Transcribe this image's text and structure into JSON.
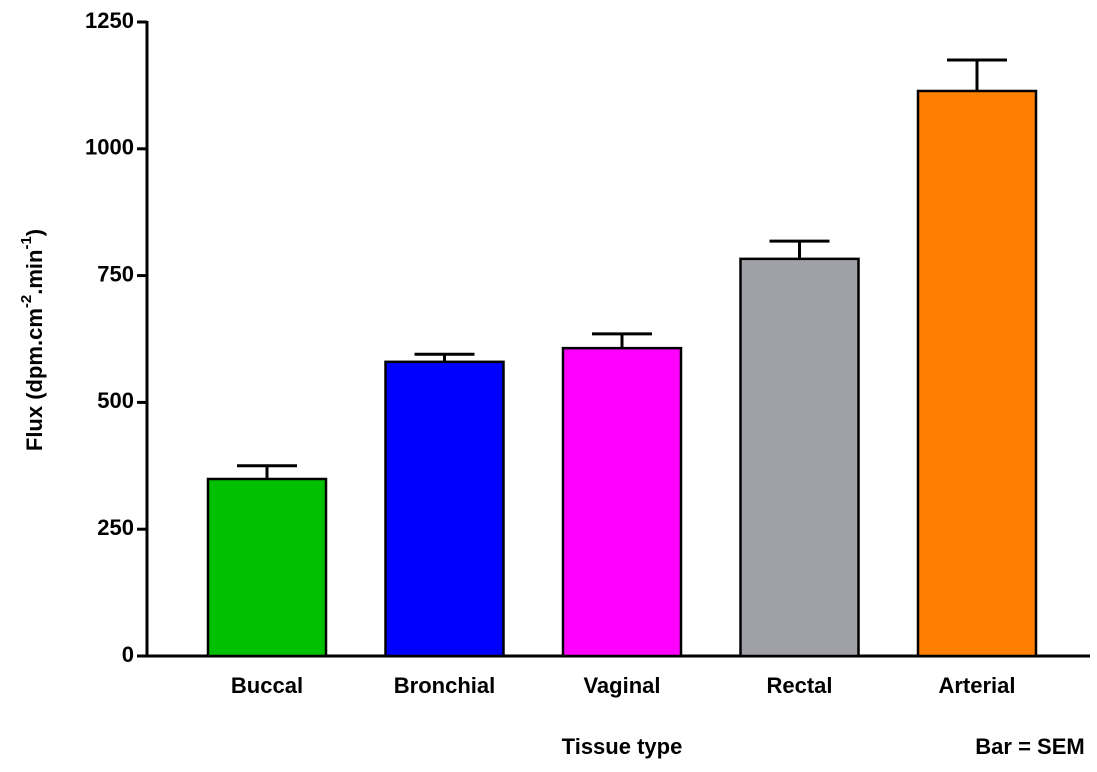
{
  "chart_data": {
    "type": "bar",
    "y_label": [
      "Flux (dpm.cm",
      "-2",
      ".min",
      "-1",
      ")"
    ],
    "x_label": "Tissue type",
    "annotation": "Bar = SEM",
    "categories": [
      "Buccal",
      "Bronchial",
      "Vaginal",
      "Rectal",
      "Arterial"
    ],
    "values": [
      349,
      580,
      607,
      783,
      1114
    ],
    "errors": [
      26,
      15,
      28,
      35,
      61
    ],
    "colors": [
      "#00c000",
      "#0000ff",
      "#ff00ff",
      "#a0a0a8",
      "#ff8000"
    ],
    "ylim": [
      0,
      1250
    ],
    "yticks": [
      0,
      250,
      500,
      750,
      1000,
      1250
    ],
    "grid": false
  }
}
